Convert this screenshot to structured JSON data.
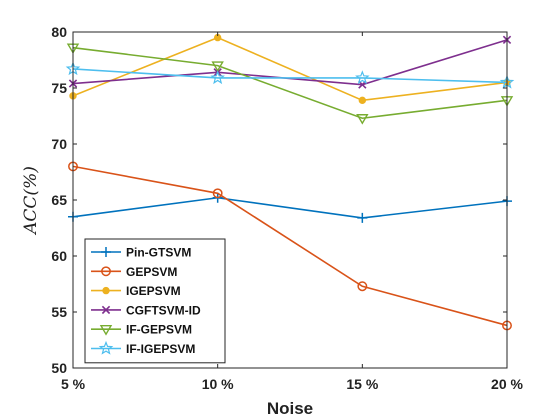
{
  "chart_data": {
    "type": "line",
    "title": "",
    "xlabel": "Noise",
    "ylabel": "ACC(%)",
    "categories": [
      "5 %",
      "10 %",
      "15 %",
      "20 %"
    ],
    "ylim": [
      50,
      80
    ],
    "yticks": [
      50,
      55,
      60,
      65,
      70,
      75,
      80
    ],
    "grid": false,
    "legend_position": "bottom-left",
    "series": [
      {
        "name": "Pin-GTSVM",
        "values": [
          63.5,
          65.2,
          63.4,
          64.9
        ],
        "color": "#0072BD",
        "marker": "plus"
      },
      {
        "name": "GEPSVM",
        "values": [
          68.0,
          65.6,
          57.3,
          53.8
        ],
        "color": "#D95319",
        "marker": "circle"
      },
      {
        "name": "IGEPSVM",
        "values": [
          74.3,
          79.5,
          73.9,
          75.5
        ],
        "color": "#EDB120",
        "marker": "dot"
      },
      {
        "name": "CGFTSVM-ID",
        "values": [
          75.4,
          76.4,
          75.3,
          79.3
        ],
        "color": "#7E2F8E",
        "marker": "x"
      },
      {
        "name": "IF-GEPSVM",
        "values": [
          78.6,
          77.0,
          72.3,
          73.9
        ],
        "color": "#77AC30",
        "marker": "triangle-down"
      },
      {
        "name": "IF-IGEPSVM",
        "values": [
          76.7,
          75.9,
          75.9,
          75.5
        ],
        "color": "#4DBEEE",
        "marker": "star"
      }
    ]
  }
}
